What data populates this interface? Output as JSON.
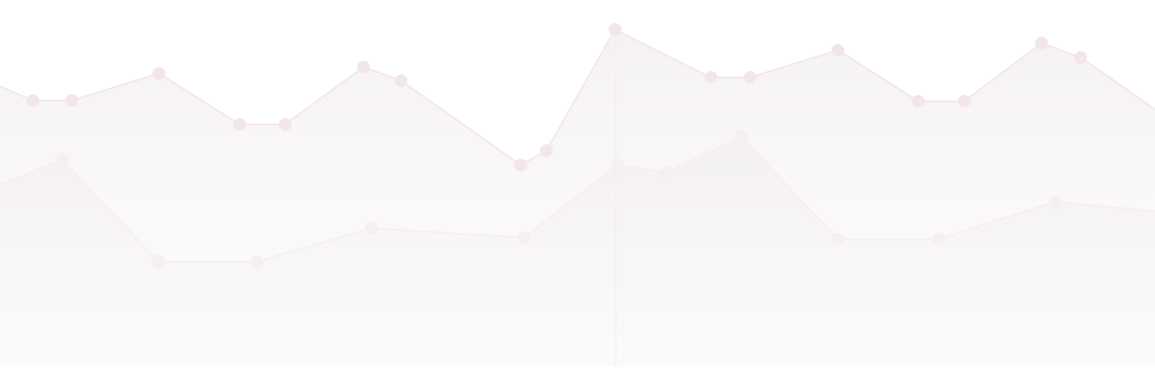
{
  "chart_data": {
    "type": "area",
    "grid": false,
    "legend": "none",
    "series": [
      {
        "x": [
          0,
          41,
          90,
          199,
          300,
          357,
          455,
          502,
          652,
          684,
          770,
          890,
          939,
          1049,
          1150,
          1207,
          1304,
          1353,
          1446
        ],
        "values": [
          108,
          126,
          126,
          92,
          156,
          156,
          84,
          101,
          207,
          189,
          37,
          97,
          97,
          63,
          127,
          127,
          54,
          72,
          137
        ],
        "color": "#f4eeee",
        "dot_color": "#f3e6e8"
      },
      {
        "x": [
          0,
          78,
          198,
          322,
          465,
          656,
          773,
          835,
          928,
          1049,
          1175,
          1321,
          1446
        ],
        "values": [
          232,
          200,
          328,
          328,
          286,
          298,
          207,
          216,
          171,
          300,
          300,
          253,
          265
        ],
        "color": "#f4f0f4",
        "dot_color": "#f6eef2"
      }
    ],
    "x_domain": [
      0,
      1446
    ],
    "y_domain": [
      0,
      479
    ],
    "divider_at": 771
  }
}
